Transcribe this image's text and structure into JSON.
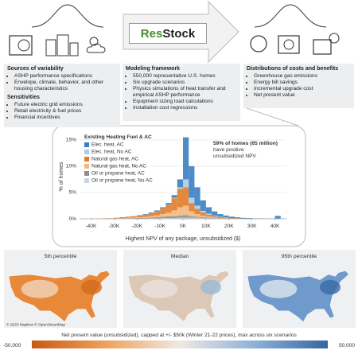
{
  "logo": {
    "part1": "Res",
    "part2": "Stock"
  },
  "panels": [
    {
      "sections": [
        {
          "title": "Sources of variability",
          "items": [
            "ASHP performance specifications",
            "Envelope, climate, behavior, and other housing characteristics"
          ]
        },
        {
          "title": "Sensitivities",
          "items": [
            "Future electric grid emissions",
            "Retail electricity & fuel prices",
            "Financial incentives"
          ]
        }
      ]
    },
    {
      "sections": [
        {
          "title": "Modeling framework",
          "items": [
            "550,000 representative U.S. homes",
            "Six upgrade scenarios",
            "Physics simulations of heat transfer and empirical ASHP performance",
            "Equipment sizing load calculations",
            "Installation cost regressions"
          ]
        }
      ]
    },
    {
      "sections": [
        {
          "title": "Distributions of costs and benefits",
          "items": [
            "Greenhouse gas emissions",
            "Energy bill savings",
            "Incremental upgrade cost",
            "Net present value"
          ]
        }
      ]
    }
  ],
  "chart_data": {
    "type": "histogram",
    "xlabel": "Highest NPV of any package, unsubsidized ($)",
    "ylabel": "% of homes",
    "legend_title": "Existing Heating Fuel & AC",
    "annotation": [
      "59% of homes (65 million)",
      "have positive",
      "unsubsidized NPV"
    ],
    "grid": true,
    "xlim": [
      -45000,
      45000
    ],
    "ylim": [
      0,
      16.5
    ],
    "xticks": [
      {
        "value": -40000,
        "label": "-40K"
      },
      {
        "value": -30000,
        "label": "-30K"
      },
      {
        "value": -20000,
        "label": "-20K"
      },
      {
        "value": -10000,
        "label": "-10K"
      },
      {
        "value": 0,
        "label": "0K"
      },
      {
        "value": 10000,
        "label": "10K"
      },
      {
        "value": 20000,
        "label": "20K"
      },
      {
        "value": 30000,
        "label": "30K"
      },
      {
        "value": 40000,
        "label": "40K"
      }
    ],
    "yticks": [
      {
        "value": 0,
        "label": "0%"
      },
      {
        "value": 5,
        "label": "5%"
      },
      {
        "value": 10,
        "label": "10%"
      },
      {
        "value": 15,
        "label": "15%"
      }
    ],
    "bins": [
      -45000,
      -42500,
      -40000,
      -37500,
      -35000,
      -32500,
      -30000,
      -27500,
      -25000,
      -22500,
      -20000,
      -17500,
      -15000,
      -12500,
      -10000,
      -7500,
      -5000,
      -2500,
      0,
      2500,
      5000,
      7500,
      10000,
      12500,
      15000,
      17500,
      20000,
      22500,
      25000,
      27500,
      30000,
      32500,
      35000,
      37500,
      40000,
      42500,
      45000
    ],
    "series": [
      {
        "name": "Elec. heat, AC",
        "color": "#3a80c0",
        "values": [
          0,
          0,
          0,
          0,
          0,
          0,
          0,
          0,
          0,
          0,
          0.05,
          0.1,
          0.1,
          0.15,
          0.2,
          0.3,
          0.5,
          1.5,
          8,
          6,
          3.5,
          2,
          1.2,
          0.8,
          0.5,
          0.35,
          0.25,
          0.18,
          0.12,
          0.1,
          0.06,
          0.05,
          0.03,
          0.03,
          0.5,
          0.03
        ]
      },
      {
        "name": "Elec. heat, No AC",
        "color": "#a9cbe8",
        "values": [
          0,
          0,
          0,
          0,
          0,
          0,
          0,
          0,
          0,
          0,
          0,
          0,
          0,
          0,
          0,
          0.05,
          0.1,
          0.3,
          1.5,
          1,
          0.6,
          0.3,
          0.2,
          0.1,
          0.1,
          0.05,
          0,
          0,
          0,
          0,
          0,
          0,
          0,
          0,
          0.05,
          0
        ]
      },
      {
        "name": "Natural gas heat, AC",
        "color": "#e07b28",
        "values": [
          0,
          0,
          0.03,
          0.03,
          0.05,
          0.05,
          0.1,
          0.15,
          0.2,
          0.25,
          0.35,
          0.45,
          0.6,
          0.8,
          1.1,
          1.5,
          2.3,
          3.5,
          3.5,
          1.6,
          1,
          0.6,
          0.4,
          0.25,
          0.15,
          0.1,
          0.08,
          0.06,
          0.04,
          0.03,
          0.02,
          0.01,
          0,
          0,
          0,
          0
        ]
      },
      {
        "name": "Natural gas heat, No AC",
        "color": "#f4b77c",
        "values": [
          0,
          0,
          0,
          0,
          0,
          0,
          0.05,
          0.08,
          0.1,
          0.12,
          0.15,
          0.2,
          0.25,
          0.35,
          0.5,
          0.7,
          1.1,
          1.6,
          1.8,
          0.9,
          0.5,
          0.3,
          0.2,
          0.12,
          0.08,
          0.05,
          0.03,
          0.02,
          0,
          0,
          0,
          0,
          0,
          0,
          0,
          0
        ]
      },
      {
        "name": "Oil or propane heat, AC",
        "color": "#8e8e8e",
        "values": [
          0,
          0,
          0,
          0,
          0.03,
          0.03,
          0.03,
          0.05,
          0.06,
          0.08,
          0.1,
          0.1,
          0.15,
          0.2,
          0.25,
          0.3,
          0.35,
          0.4,
          0.5,
          0.3,
          0.2,
          0.15,
          0.1,
          0.08,
          0.05,
          0.05,
          0.03,
          0.03,
          0.02,
          0.01,
          0,
          0,
          0,
          0,
          0,
          0
        ]
      },
      {
        "name": "Oil or propane heat, No AC",
        "color": "#c8d4e3",
        "values": [
          0,
          0,
          0.02,
          0.02,
          0.02,
          0.02,
          0.02,
          0.02,
          0.04,
          0.05,
          0.05,
          0.05,
          0.1,
          0.1,
          0.15,
          0.15,
          0.15,
          0.2,
          0.2,
          0.2,
          0.2,
          0.15,
          0.1,
          0.05,
          0.02,
          0.02,
          0.01,
          0,
          0,
          0,
          0,
          0,
          0,
          0,
          0,
          0
        ]
      }
    ]
  },
  "maps": {
    "panels": [
      "5th percentile",
      "Median",
      "95th percentile"
    ],
    "credit": "© 2023 Mapbox © OpenStreetMap",
    "colorbar": {
      "title": "Net present value (unsubsidized), capped at +/- $50k (Winter 21-22 prices), max across six scenarios",
      "min_label": "-50,000",
      "max_label": "50,000"
    }
  }
}
